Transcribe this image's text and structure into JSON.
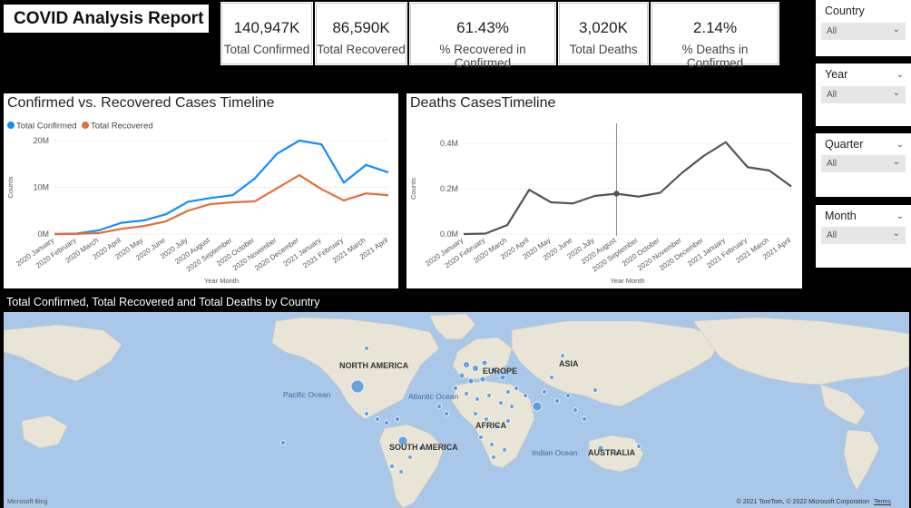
{
  "report": {
    "title": "COVID Analysis Report"
  },
  "kpis": [
    {
      "value": "140,947K",
      "label": "Total Confirmed"
    },
    {
      "value": "86,590K",
      "label": "Total Recovered"
    },
    {
      "value": "61.43%",
      "label": "% Recovered in Confirmed"
    },
    {
      "value": "3,020K",
      "label": "Total Deaths"
    },
    {
      "value": "2.14%",
      "label": "% Deaths in Confirmed"
    }
  ],
  "slicers": [
    {
      "title": "Country",
      "value": "All"
    },
    {
      "title": "Year",
      "value": "All"
    },
    {
      "title": "Quarter",
      "value": "All"
    },
    {
      "title": "Month",
      "value": "All"
    }
  ],
  "colors": {
    "confirmed": "#118dff",
    "recovered": "#e66c37",
    "deaths": "#555555",
    "land": "#e8e3d4",
    "water": "#a9c7e8",
    "bubble": "#3f8de0"
  },
  "chart_data": [
    {
      "type": "line",
      "title": "Confirmed vs. Recovered Cases Timeline",
      "xlabel": "Year Month",
      "ylabel": "Counts",
      "legend_position": "top-left",
      "categories": [
        "2020 January",
        "2020 February",
        "2020 March",
        "2020 April",
        "2020 May",
        "2020 June",
        "2020 July",
        "2020 August",
        "2020 September",
        "2020 October",
        "2020 November",
        "2020 December",
        "2021 January",
        "2021 February",
        "2021 March",
        "2021 April"
      ],
      "ylim": [
        0,
        20000000
      ],
      "yticks": [
        "0M",
        "10M",
        "20M"
      ],
      "series": [
        {
          "name": "Total Confirmed",
          "values": [
            0.0,
            0.1,
            0.8,
            2.4,
            2.9,
            4.2,
            6.9,
            7.7,
            8.3,
            11.9,
            17.2,
            20.0,
            19.2,
            11.0,
            14.8,
            13.2
          ]
        },
        {
          "name": "Total Recovered",
          "values": [
            0.0,
            0.05,
            0.2,
            1.1,
            1.7,
            2.7,
            5.0,
            6.4,
            6.8,
            7.0,
            9.8,
            12.6,
            9.6,
            7.2,
            8.7,
            8.3
          ]
        }
      ],
      "value_unit": "M"
    },
    {
      "type": "line",
      "title": "Deaths CasesTimeline",
      "xlabel": "Year Month",
      "ylabel": "Counts",
      "categories": [
        "2020 January",
        "2020 February",
        "2020 March",
        "2020 April",
        "2020 May",
        "2020 June",
        "2020 July",
        "2020 August",
        "2020 September",
        "2020 October",
        "2020 November",
        "2020 December",
        "2021 January",
        "2021 February",
        "2021 March",
        "2021 April"
      ],
      "ylim": [
        0,
        0.4
      ],
      "yticks": [
        "0.0M",
        "0.2M",
        "0.4M"
      ],
      "series": [
        {
          "name": "Total Deaths",
          "values": [
            0.0,
            0.002,
            0.04,
            0.195,
            0.14,
            0.135,
            0.168,
            0.178,
            0.165,
            0.182,
            0.27,
            0.345,
            0.405,
            0.295,
            0.28,
            0.21
          ]
        }
      ],
      "highlight_index": 7,
      "value_unit": "M"
    }
  ],
  "map": {
    "title": "Total Confirmed, Total Recovered and Total Deaths by Country",
    "labels": [
      "NORTH AMERICA",
      "SOUTH AMERICA",
      "EUROPE",
      "ASIA",
      "AFRICA",
      "AUSTRALIA",
      "Pacific Ocean",
      "Atlantic Ocean",
      "Indian Ocean"
    ],
    "attribution": "© 2021 TomTom, © 2022 Microsoft Corporation",
    "terms": "Terms",
    "brand": "Microsoft Bing"
  }
}
